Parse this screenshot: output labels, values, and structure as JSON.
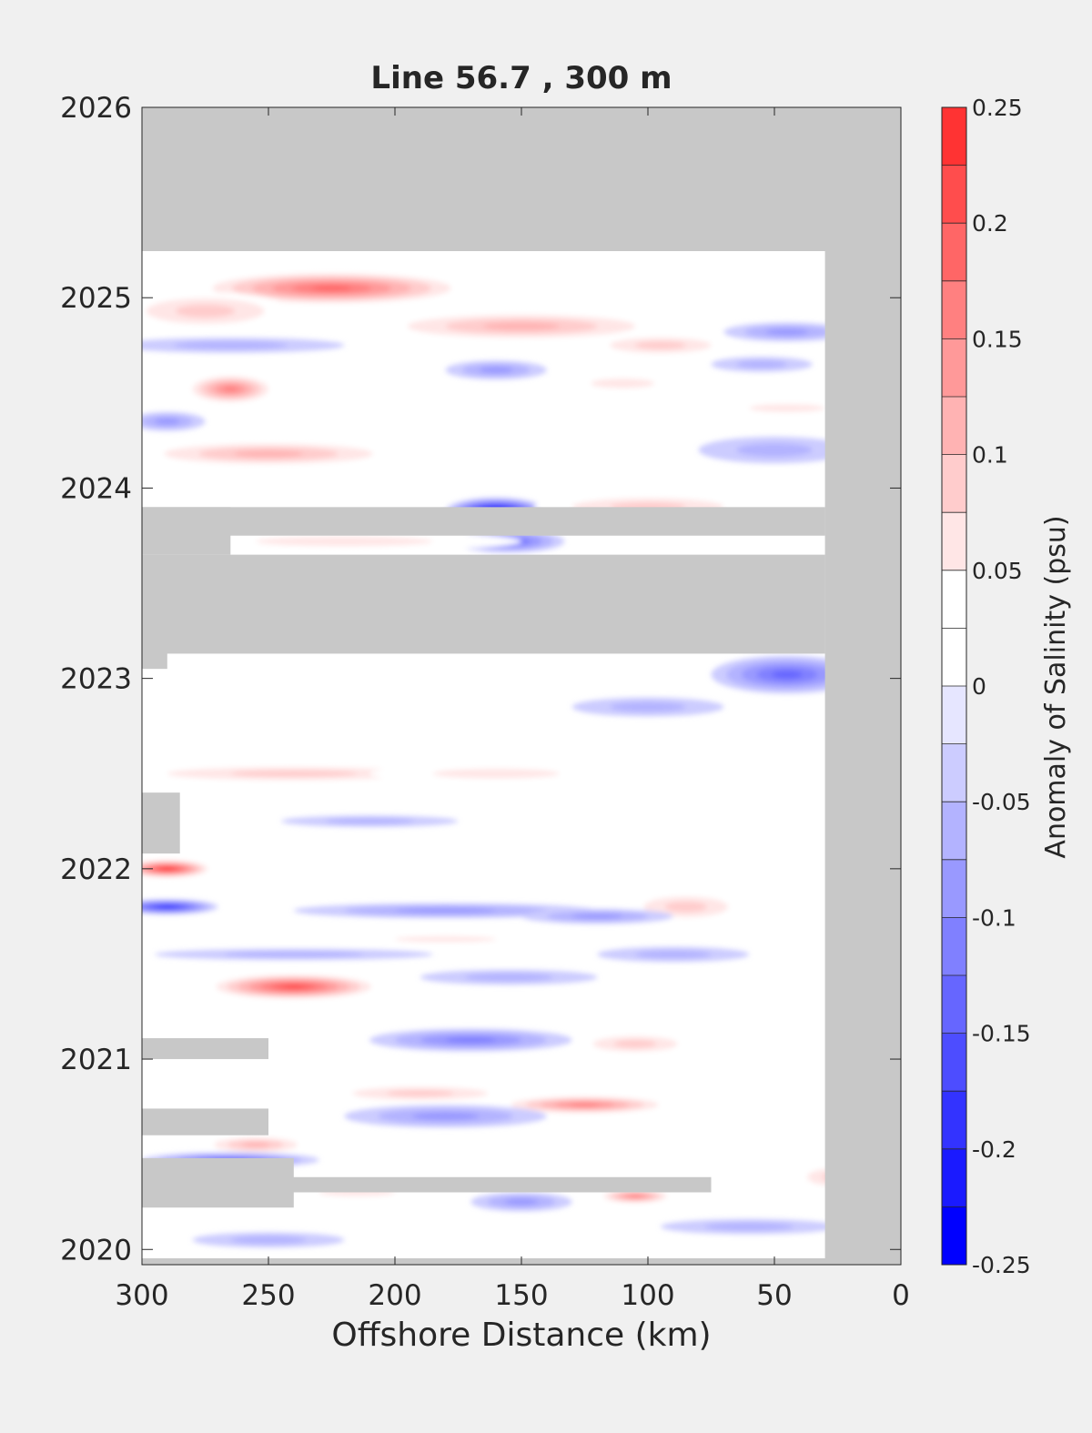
{
  "chart_data": {
    "type": "heatmap",
    "title": "Line 56.7 , 300 m",
    "xlabel": "Offshore Distance (km)",
    "ylabel": "",
    "xlim": [
      300,
      0
    ],
    "ylim": [
      2019.92,
      2026
    ],
    "x_ticks": [
      300,
      250,
      200,
      150,
      100,
      50,
      0
    ],
    "y_ticks": [
      2020,
      2021,
      2022,
      2023,
      2024,
      2025,
      2026
    ],
    "x_direction": "reversed",
    "grid": false,
    "background_color": "#ffffff",
    "no_data_color": "#c8c8c8",
    "data_extent": {
      "x_min": 30,
      "x_max": 300,
      "y_min": 2019.96,
      "y_max": 2025.25
    },
    "colorbar": {
      "label": "Anomaly of Salinity (psu)",
      "placement": "right",
      "limits": [
        -0.25,
        0.25
      ],
      "tick_values": [
        -0.25,
        -0.2,
        -0.15,
        -0.1,
        -0.05,
        0,
        0.05,
        0.1,
        0.15,
        0.2,
        0.25
      ],
      "tick_labels": [
        "-0.25",
        "-0.2",
        "-0.15",
        "-0.1",
        "-0.05",
        "0",
        "0.05",
        "0.1",
        "0.15",
        "0.2",
        "0.25"
      ],
      "levels": [
        -0.25,
        -0.225,
        -0.2,
        -0.175,
        -0.15,
        -0.125,
        -0.1,
        -0.075,
        -0.05,
        -0.025,
        0,
        0.025,
        0.05,
        0.075,
        0.1,
        0.125,
        0.15,
        0.175,
        0.2,
        0.225,
        0.25
      ],
      "colors": [
        "#0000ff",
        "#1a1aff",
        "#3333ff",
        "#4d4dff",
        "#6666ff",
        "#8080ff",
        "#9999ff",
        "#b3b3ff",
        "#ccccff",
        "#e6e6ff",
        "#ffffff",
        "#ffffff",
        "#ffe6e6",
        "#ffcccc",
        "#ffb3b3",
        "#ff9999",
        "#ff8080",
        "#ff6666",
        "#ff4d4d",
        "#ff3333",
        "#ff1a1a",
        "#ff0000"
      ]
    },
    "missing_regions": [
      {
        "y_range": [
          2025.25,
          2026
        ],
        "x_range": [
          0,
          300
        ]
      },
      {
        "y_range": [
          2019.92,
          2026
        ],
        "x_range": [
          0,
          30
        ]
      },
      {
        "y_range": [
          2023.75,
          2023.9
        ],
        "x_range": [
          30,
          300
        ]
      },
      {
        "y_range": [
          2023.65,
          2023.9
        ],
        "x_range": [
          265,
          300
        ]
      },
      {
        "y_range": [
          2023.13,
          2023.65
        ],
        "x_range": [
          30,
          300
        ]
      },
      {
        "y_range": [
          2023.05,
          2023.15
        ],
        "x_range": [
          290,
          300
        ]
      },
      {
        "y_range": [
          2022.08,
          2022.4
        ],
        "x_range": [
          285,
          300
        ]
      },
      {
        "y_range": [
          2021,
          2021.11
        ],
        "x_range": [
          250,
          300
        ]
      },
      {
        "y_range": [
          2020.6,
          2020.74
        ],
        "x_range": [
          250,
          300
        ]
      },
      {
        "y_range": [
          2020.22,
          2020.48
        ],
        "x_range": [
          240,
          300
        ]
      },
      {
        "y_range": [
          2020.3,
          2020.38
        ],
        "x_range": [
          75,
          300
        ]
      }
    ],
    "anomaly_features": [
      {
        "x": 225,
        "y": 2025.05,
        "value": 0.18,
        "rx": 55,
        "ry": 0.09
      },
      {
        "x": 275,
        "y": 2024.93,
        "value": 0.08,
        "rx": 35,
        "ry": 0.1
      },
      {
        "x": 150,
        "y": 2024.85,
        "value": 0.09,
        "rx": 60,
        "ry": 0.08
      },
      {
        "x": 95,
        "y": 2024.75,
        "value": 0.07,
        "rx": 30,
        "ry": 0.06
      },
      {
        "x": 265,
        "y": 2024.52,
        "value": 0.15,
        "rx": 18,
        "ry": 0.08
      },
      {
        "x": 265,
        "y": 2024.75,
        "value": -0.06,
        "rx": 45,
        "ry": 0.04
      },
      {
        "x": 160,
        "y": 2024.62,
        "value": -0.08,
        "rx": 20,
        "ry": 0.05
      },
      {
        "x": 45,
        "y": 2024.82,
        "value": -0.07,
        "rx": 25,
        "ry": 0.05
      },
      {
        "x": 55,
        "y": 2024.65,
        "value": -0.06,
        "rx": 20,
        "ry": 0.04
      },
      {
        "x": 110,
        "y": 2024.55,
        "value": 0.06,
        "rx": 25,
        "ry": 0.05
      },
      {
        "x": 45,
        "y": 2024.42,
        "value": 0.05,
        "rx": 30,
        "ry": 0.04
      },
      {
        "x": 290,
        "y": 2024.35,
        "value": -0.07,
        "rx": 15,
        "ry": 0.05
      },
      {
        "x": 250,
        "y": 2024.18,
        "value": 0.1,
        "rx": 55,
        "ry": 0.07
      },
      {
        "x": 50,
        "y": 2024.2,
        "value": -0.05,
        "rx": 30,
        "ry": 0.07
      },
      {
        "x": 160,
        "y": 2023.88,
        "value": -0.22,
        "rx": 20,
        "ry": 0.07
      },
      {
        "x": 155,
        "y": 2023.72,
        "value": -0.12,
        "rx": 22,
        "ry": 0.06
      },
      {
        "x": 100,
        "y": 2023.9,
        "value": 0.08,
        "rx": 45,
        "ry": 0.07
      },
      {
        "x": 220,
        "y": 2023.72,
        "value": 0.04,
        "rx": 70,
        "ry": 0.05
      },
      {
        "x": 45,
        "y": 2023.02,
        "value": -0.12,
        "rx": 30,
        "ry": 0.1
      },
      {
        "x": 100,
        "y": 2022.85,
        "value": -0.05,
        "rx": 30,
        "ry": 0.05
      },
      {
        "x": 240,
        "y": 2022.5,
        "value": 0.07,
        "rx": 75,
        "ry": 0.05
      },
      {
        "x": 160,
        "y": 2022.5,
        "value": 0.06,
        "rx": 50,
        "ry": 0.05
      },
      {
        "x": 210,
        "y": 2022.25,
        "value": -0.04,
        "rx": 35,
        "ry": 0.03
      },
      {
        "x": 290,
        "y": 2022.0,
        "value": 0.22,
        "rx": 18,
        "ry": 0.05
      },
      {
        "x": 85,
        "y": 2021.8,
        "value": 0.07,
        "rx": 25,
        "ry": 0.08
      },
      {
        "x": 290,
        "y": 2021.8,
        "value": -0.17,
        "rx": 20,
        "ry": 0.04
      },
      {
        "x": 180,
        "y": 2021.78,
        "value": -0.08,
        "rx": 60,
        "ry": 0.04
      },
      {
        "x": 120,
        "y": 2021.75,
        "value": -0.07,
        "rx": 30,
        "ry": 0.04
      },
      {
        "x": 180,
        "y": 2021.63,
        "value": 0.05,
        "rx": 40,
        "ry": 0.03
      },
      {
        "x": 240,
        "y": 2021.55,
        "value": -0.05,
        "rx": 55,
        "ry": 0.03
      },
      {
        "x": 90,
        "y": 2021.55,
        "value": -0.06,
        "rx": 30,
        "ry": 0.04
      },
      {
        "x": 240,
        "y": 2021.38,
        "value": 0.19,
        "rx": 35,
        "ry": 0.07
      },
      {
        "x": 155,
        "y": 2021.43,
        "value": -0.06,
        "rx": 35,
        "ry": 0.04
      },
      {
        "x": 170,
        "y": 2021.1,
        "value": -0.1,
        "rx": 40,
        "ry": 0.06
      },
      {
        "x": 105,
        "y": 2021.08,
        "value": 0.07,
        "rx": 25,
        "ry": 0.06
      },
      {
        "x": 190,
        "y": 2020.82,
        "value": 0.08,
        "rx": 40,
        "ry": 0.05
      },
      {
        "x": 125,
        "y": 2020.76,
        "value": 0.14,
        "rx": 35,
        "ry": 0.05
      },
      {
        "x": 180,
        "y": 2020.7,
        "value": -0.08,
        "rx": 40,
        "ry": 0.06
      },
      {
        "x": 255,
        "y": 2020.55,
        "value": 0.1,
        "rx": 22,
        "ry": 0.05
      },
      {
        "x": 265,
        "y": 2020.47,
        "value": -0.13,
        "rx": 35,
        "ry": 0.04
      },
      {
        "x": 105,
        "y": 2020.28,
        "value": 0.14,
        "rx": 15,
        "ry": 0.04
      },
      {
        "x": 25,
        "y": 2020.38,
        "value": 0.07,
        "rx": 18,
        "ry": 0.07
      },
      {
        "x": 150,
        "y": 2020.25,
        "value": -0.08,
        "rx": 20,
        "ry": 0.05
      },
      {
        "x": 215,
        "y": 2020.3,
        "value": 0.05,
        "rx": 30,
        "ry": 0.04
      },
      {
        "x": 250,
        "y": 2020.05,
        "value": -0.05,
        "rx": 30,
        "ry": 0.04
      },
      {
        "x": 60,
        "y": 2020.12,
        "value": -0.04,
        "rx": 35,
        "ry": 0.04
      }
    ]
  }
}
